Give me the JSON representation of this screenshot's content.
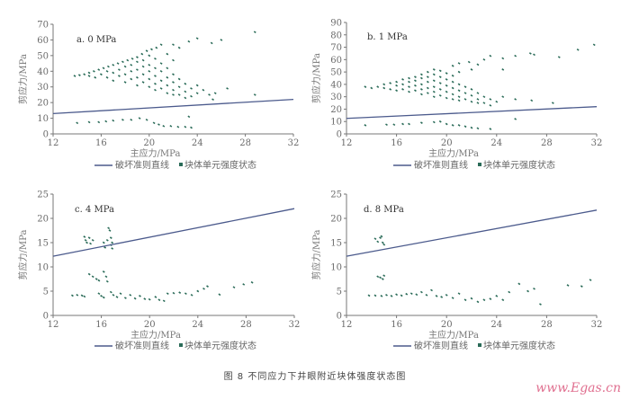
{
  "caption": "图 8   不同应力下井眼附近块体强度状态图",
  "watermark": "www.Egas.cn",
  "colors": {
    "points": "#2a6b58",
    "line": "#4b5a8c",
    "axis": "#777777"
  },
  "chart_data": [
    {
      "type": "scatter",
      "panel_label": "a. 0 MPa",
      "xlabel": "主应力/MPa",
      "ylabel": "剪应力/MPa",
      "xlim": [
        12,
        32
      ],
      "ylim": [
        0,
        70
      ],
      "xticks": [
        12,
        16,
        20,
        24,
        28,
        32
      ],
      "yticks": [
        0,
        10,
        20,
        30,
        40,
        50,
        60,
        70
      ],
      "legend": {
        "line": "破坏准则直线",
        "points": "块体单元强度状态"
      },
      "criterion_line": [
        [
          12,
          13
        ],
        [
          32,
          22
        ]
      ],
      "points": [
        [
          13.8,
          37
        ],
        [
          14.2,
          37.5
        ],
        [
          14.6,
          38
        ],
        [
          15,
          39
        ],
        [
          15.4,
          40
        ],
        [
          15.8,
          41
        ],
        [
          16.2,
          42
        ],
        [
          16.6,
          43
        ],
        [
          17,
          44
        ],
        [
          17.4,
          45
        ],
        [
          17.8,
          46
        ],
        [
          18.2,
          47
        ],
        [
          18.6,
          48
        ],
        [
          19,
          49
        ],
        [
          19.4,
          51
        ],
        [
          19.8,
          53
        ],
        [
          20.2,
          54
        ],
        [
          20.6,
          55
        ],
        [
          15,
          37
        ],
        [
          15.5,
          36
        ],
        [
          16,
          38
        ],
        [
          16.5,
          36
        ],
        [
          16.5,
          40
        ],
        [
          17,
          39
        ],
        [
          17,
          34
        ],
        [
          17.5,
          41
        ],
        [
          17.5,
          37
        ],
        [
          18,
          43
        ],
        [
          18,
          38
        ],
        [
          18,
          33
        ],
        [
          18.5,
          44
        ],
        [
          18.5,
          40
        ],
        [
          18.5,
          35
        ],
        [
          19,
          46
        ],
        [
          19,
          41
        ],
        [
          19,
          36
        ],
        [
          19,
          31
        ],
        [
          19.5,
          47
        ],
        [
          19.5,
          43
        ],
        [
          19.5,
          38
        ],
        [
          19.5,
          33
        ],
        [
          20,
          50
        ],
        [
          20,
          44
        ],
        [
          20,
          40
        ],
        [
          20,
          35
        ],
        [
          20,
          30
        ],
        [
          20.5,
          48
        ],
        [
          20.5,
          42
        ],
        [
          20.5,
          37
        ],
        [
          20.5,
          32
        ],
        [
          20.5,
          28
        ],
        [
          21,
          45
        ],
        [
          21,
          40
        ],
        [
          21,
          34
        ],
        [
          21,
          29
        ],
        [
          21.5,
          42
        ],
        [
          21.5,
          36
        ],
        [
          21.5,
          31
        ],
        [
          21.5,
          26
        ],
        [
          22,
          38
        ],
        [
          22,
          33
        ],
        [
          22,
          28
        ],
        [
          22,
          25
        ],
        [
          22.5,
          35
        ],
        [
          22.5,
          30
        ],
        [
          22.5,
          25
        ],
        [
          23,
          32
        ],
        [
          23,
          27
        ],
        [
          23,
          23
        ],
        [
          23.5,
          29
        ],
        [
          23.5,
          24
        ],
        [
          24,
          26
        ],
        [
          24,
          31
        ],
        [
          24.5,
          28
        ],
        [
          25,
          25
        ],
        [
          25.5,
          26
        ],
        [
          26.5,
          29
        ],
        [
          21,
          57
        ],
        [
          22,
          57
        ],
        [
          22.5,
          55
        ],
        [
          23.3,
          59
        ],
        [
          24,
          61
        ],
        [
          25.2,
          58
        ],
        [
          26,
          60
        ],
        [
          28.8,
          65
        ],
        [
          28.8,
          25
        ],
        [
          25.3,
          22
        ],
        [
          21.5,
          51
        ],
        [
          22,
          47
        ],
        [
          14,
          7
        ],
        [
          15,
          7.5
        ],
        [
          15.8,
          7.5
        ],
        [
          16.4,
          8
        ],
        [
          17,
          8.5
        ],
        [
          17.8,
          9
        ],
        [
          18.5,
          9
        ],
        [
          19.2,
          10
        ],
        [
          19.8,
          9
        ],
        [
          20.4,
          7
        ],
        [
          20.8,
          6
        ],
        [
          21.2,
          5
        ],
        [
          21.8,
          5
        ],
        [
          22.4,
          4.5
        ],
        [
          23,
          4.5
        ],
        [
          23.3,
          11
        ],
        [
          23.5,
          4
        ]
      ]
    },
    {
      "type": "scatter",
      "panel_label": "b. 1 MPa",
      "xlabel": "主应力/MPa",
      "ylabel": "剪应力/MPa",
      "xlim": [
        12,
        32
      ],
      "ylim": [
        0,
        90
      ],
      "xticks": [
        12,
        16,
        20,
        24,
        28,
        32
      ],
      "yticks": [
        0,
        10,
        20,
        30,
        40,
        50,
        60,
        70,
        80,
        90
      ],
      "legend": {
        "line": "破坏准则直线",
        "points": "块体单元强度状态"
      },
      "criterion_line": [
        [
          12,
          12.5
        ],
        [
          32,
          22
        ]
      ],
      "points": [
        [
          13.5,
          38
        ],
        [
          14,
          37
        ],
        [
          14.5,
          38
        ],
        [
          15,
          40
        ],
        [
          15.5,
          41
        ],
        [
          16,
          42
        ],
        [
          16.5,
          44
        ],
        [
          17,
          45
        ],
        [
          17.5,
          46
        ],
        [
          18,
          48
        ],
        [
          18.5,
          50
        ],
        [
          19,
          52
        ],
        [
          19.5,
          51
        ],
        [
          20,
          49
        ],
        [
          20.5,
          47
        ],
        [
          15,
          37
        ],
        [
          15.5,
          36
        ],
        [
          16,
          39
        ],
        [
          16,
          35
        ],
        [
          16.5,
          40
        ],
        [
          16.5,
          36
        ],
        [
          17,
          42
        ],
        [
          17,
          38
        ],
        [
          17,
          34
        ],
        [
          17.5,
          43
        ],
        [
          17.5,
          39
        ],
        [
          17.5,
          35
        ],
        [
          18,
          45
        ],
        [
          18,
          40
        ],
        [
          18,
          36
        ],
        [
          18,
          32
        ],
        [
          18.5,
          46
        ],
        [
          18.5,
          42
        ],
        [
          18.5,
          37
        ],
        [
          18.5,
          33
        ],
        [
          19,
          48
        ],
        [
          19,
          43
        ],
        [
          19,
          38
        ],
        [
          19,
          34
        ],
        [
          19,
          30
        ],
        [
          19.5,
          46
        ],
        [
          19.5,
          41
        ],
        [
          19.5,
          36
        ],
        [
          19.5,
          31
        ],
        [
          20,
          44
        ],
        [
          20,
          39
        ],
        [
          20,
          34
        ],
        [
          20,
          29
        ],
        [
          20.5,
          42
        ],
        [
          20.5,
          37
        ],
        [
          20.5,
          32
        ],
        [
          20.5,
          28
        ],
        [
          21,
          40
        ],
        [
          21,
          35
        ],
        [
          21,
          30
        ],
        [
          21,
          27
        ],
        [
          21.5,
          38
        ],
        [
          21.5,
          33
        ],
        [
          21.5,
          28
        ],
        [
          22,
          36
        ],
        [
          22,
          31
        ],
        [
          22,
          26
        ],
        [
          22.5,
          33
        ],
        [
          22.5,
          28
        ],
        [
          22.5,
          25
        ],
        [
          23,
          30
        ],
        [
          23,
          25
        ],
        [
          23.5,
          28
        ],
        [
          23.5,
          23
        ],
        [
          24,
          26
        ],
        [
          24.5,
          30
        ],
        [
          20.5,
          55
        ],
        [
          21,
          57
        ],
        [
          21.8,
          58
        ],
        [
          22.5,
          56
        ],
        [
          23,
          60
        ],
        [
          23.5,
          63
        ],
        [
          24.5,
          61
        ],
        [
          25.5,
          63
        ],
        [
          26.7,
          65
        ],
        [
          27,
          64
        ],
        [
          29,
          62
        ],
        [
          30.5,
          68
        ],
        [
          31.8,
          72
        ],
        [
          25.5,
          28
        ],
        [
          26.8,
          27
        ],
        [
          28.5,
          25
        ],
        [
          21,
          50
        ],
        [
          22,
          52
        ],
        [
          24.5,
          52
        ],
        [
          25.5,
          12
        ],
        [
          13.5,
          7
        ],
        [
          15.2,
          7.5
        ],
        [
          15.8,
          7.5
        ],
        [
          16.5,
          8
        ],
        [
          17,
          8
        ],
        [
          18,
          9
        ],
        [
          19,
          9.5
        ],
        [
          19.5,
          10
        ],
        [
          20,
          8
        ],
        [
          20.5,
          7
        ],
        [
          21,
          7
        ],
        [
          21.5,
          6
        ],
        [
          22,
          5
        ],
        [
          22.5,
          4.5
        ],
        [
          23.5,
          4
        ]
      ]
    },
    {
      "type": "scatter",
      "panel_label": "c. 4 MPa",
      "xlabel": "主应力/MPa",
      "ylabel": "剪应力/MPa",
      "xlim": [
        12,
        32
      ],
      "ylim": [
        0,
        25
      ],
      "xticks": [
        12,
        16,
        20,
        24,
        28,
        32
      ],
      "yticks": [
        0,
        5,
        10,
        15,
        20,
        25
      ],
      "legend": {
        "line": "破坏准则直线",
        "points": "块体单元强度状态"
      },
      "criterion_line": [
        [
          12,
          12.2
        ],
        [
          32,
          22
        ]
      ],
      "points": [
        [
          14.6,
          16.2
        ],
        [
          14.7,
          15.5
        ],
        [
          14.8,
          15
        ],
        [
          15,
          16
        ],
        [
          15.1,
          14.8
        ],
        [
          15.3,
          15.5
        ],
        [
          16.2,
          15
        ],
        [
          16.3,
          14
        ],
        [
          16.5,
          15.5
        ],
        [
          16.7,
          17.5
        ],
        [
          16.8,
          16
        ],
        [
          16.8,
          14.5
        ],
        [
          16.9,
          13.8
        ],
        [
          16.6,
          18
        ],
        [
          16.9,
          15
        ],
        [
          15,
          8.5
        ],
        [
          15.3,
          8
        ],
        [
          15.6,
          7.5
        ],
        [
          15.8,
          7.2
        ],
        [
          16.2,
          9
        ],
        [
          16.4,
          8
        ],
        [
          16.5,
          7
        ],
        [
          13.6,
          4.1
        ],
        [
          14,
          4.2
        ],
        [
          14.4,
          4.1
        ],
        [
          14.6,
          3.9
        ],
        [
          15.8,
          4.5
        ],
        [
          16,
          4
        ],
        [
          16.2,
          3.7
        ],
        [
          16.8,
          4.8
        ],
        [
          17,
          4.2
        ],
        [
          17.3,
          3.8
        ],
        [
          17.6,
          4.5
        ],
        [
          18,
          3.6
        ],
        [
          18.4,
          4.2
        ],
        [
          18.8,
          3.5
        ],
        [
          19.2,
          4
        ],
        [
          19.6,
          3.4
        ],
        [
          20,
          3.3
        ],
        [
          20.5,
          3.8
        ],
        [
          20.8,
          3.2
        ],
        [
          21.2,
          3
        ],
        [
          21.5,
          4.5
        ],
        [
          22,
          4.6
        ],
        [
          22.5,
          4.7
        ],
        [
          23,
          4.5
        ],
        [
          23.5,
          4.2
        ],
        [
          24,
          5
        ],
        [
          24.5,
          5.5
        ],
        [
          24.8,
          6
        ],
        [
          25.8,
          4.3
        ],
        [
          27,
          5.8
        ],
        [
          27.8,
          6.4
        ],
        [
          28.5,
          6.8
        ]
      ]
    },
    {
      "type": "scatter",
      "panel_label": "d. 8 MPa",
      "xlabel": "主应力/MPa",
      "ylabel": "剪应力/MPa",
      "xlim": [
        12,
        32
      ],
      "ylim": [
        0,
        25
      ],
      "xticks": [
        12,
        16,
        20,
        24,
        28,
        32
      ],
      "yticks": [
        0,
        5,
        10,
        15,
        20,
        25
      ],
      "legend": {
        "line": "破坏准则直线",
        "points": "块体单元强度状态"
      },
      "criterion_line": [
        [
          12,
          12.2
        ],
        [
          32,
          21.7
        ]
      ],
      "points": [
        [
          14.3,
          15.8
        ],
        [
          14.5,
          15.2
        ],
        [
          14.7,
          16
        ],
        [
          14.9,
          15
        ],
        [
          15,
          14.6
        ],
        [
          14.8,
          16.3
        ],
        [
          14.5,
          8
        ],
        [
          14.7,
          7.8
        ],
        [
          14.9,
          7.5
        ],
        [
          15,
          8.2
        ],
        [
          13.8,
          4.1
        ],
        [
          14.3,
          4.1
        ],
        [
          14.8,
          4
        ],
        [
          15.2,
          4.2
        ],
        [
          15.6,
          4
        ],
        [
          16,
          4.3
        ],
        [
          16.4,
          4.1
        ],
        [
          16.8,
          4.4
        ],
        [
          17.2,
          4.5
        ],
        [
          17.6,
          4.3
        ],
        [
          18,
          4.8
        ],
        [
          18.4,
          4.2
        ],
        [
          18.8,
          5.2
        ],
        [
          19.2,
          4
        ],
        [
          19.6,
          3.8
        ],
        [
          20,
          4.2
        ],
        [
          20.5,
          3.6
        ],
        [
          21,
          4.5
        ],
        [
          21.5,
          3.2
        ],
        [
          22,
          3.5
        ],
        [
          22.5,
          2.8
        ],
        [
          23,
          3.2
        ],
        [
          23.5,
          3.4
        ],
        [
          24,
          4
        ],
        [
          24.5,
          3.2
        ],
        [
          25,
          4.8
        ],
        [
          25.8,
          6.5
        ],
        [
          26.5,
          5
        ],
        [
          27,
          5.5
        ],
        [
          27.5,
          2.3
        ],
        [
          29.7,
          6.2
        ],
        [
          30.8,
          6
        ],
        [
          31.5,
          7.3
        ]
      ]
    }
  ]
}
